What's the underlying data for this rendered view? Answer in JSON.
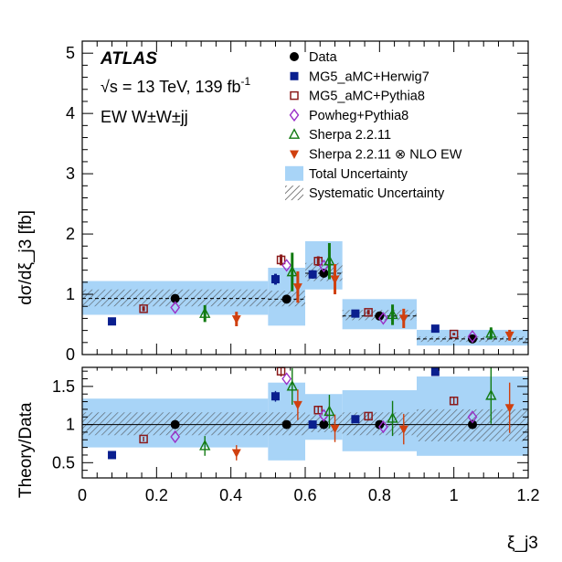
{
  "chart_data": {
    "type": "scatter",
    "experiment_label": "ATLAS",
    "energy_label": "√s = 13 TeV, 139 fb",
    "energy_label_sup": "-1",
    "process_label": "EW W±W±jj",
    "xlabel": "ξ_j3",
    "ylabel_top": "dσ/dξ_j3 [fb]",
    "ylabel_bottom": "Theory/Data",
    "xlim": [
      0,
      1.2
    ],
    "ylim_top": [
      0,
      5.2
    ],
    "ylim_bottom": [
      0.3,
      1.75
    ],
    "x_ticks": [
      "0",
      "0.2",
      "0.4",
      "0.6",
      "0.8",
      "1",
      "1.2"
    ],
    "y_ticks_top": [
      "0",
      "1",
      "2",
      "3",
      "4",
      "5"
    ],
    "y_ticks_bottom": [
      "0.5",
      "1",
      "1.5"
    ],
    "bins": [
      [
        0,
        0.5
      ],
      [
        0.5,
        0.6
      ],
      [
        0.6,
        0.7
      ],
      [
        0.7,
        0.9
      ],
      [
        0.9,
        1.2
      ]
    ],
    "data_x": [
      0.25,
      0.55,
      0.65,
      0.8,
      1.05
    ],
    "series": [
      {
        "name": "Data",
        "marker": "circle",
        "color": "#000000",
        "offset": 0,
        "values": [
          0.93,
          0.92,
          1.35,
          0.64,
          0.26
        ],
        "errors": [
          0,
          0,
          0,
          0,
          0
        ],
        "ratio": [
          1.0,
          1.0,
          1.0,
          1.0,
          1.0
        ],
        "ratio_errors": [
          0,
          0,
          0,
          0,
          0
        ]
      },
      {
        "name": "MG5_aMC+Herwig7",
        "marker": "square-filled",
        "color": "#0a1f8f",
        "x": [
          0.08,
          0.52,
          0.62,
          0.735,
          0.95
        ],
        "values": [
          0.55,
          1.25,
          1.33,
          0.68,
          0.43
        ],
        "errors": [
          0.03,
          0.09,
          0.07,
          0.04,
          0.02
        ],
        "ratio": [
          0.6,
          1.37,
          1.0,
          1.07,
          1.69
        ],
        "ratio_errors": [
          0.02,
          0.07,
          0.05,
          0.04,
          0.04
        ]
      },
      {
        "name": "MG5_aMC+Pythia8",
        "marker": "square-open",
        "color": "#8b1a1a",
        "x": [
          0.165,
          0.535,
          0.635,
          0.77,
          1.0
        ],
        "values": [
          0.76,
          1.57,
          1.55,
          0.7,
          0.34
        ],
        "errors": [
          0.04,
          0.09,
          0.08,
          0.04,
          0.02
        ],
        "ratio": [
          0.81,
          1.7,
          1.19,
          1.11,
          1.31
        ],
        "ratio_errors": [
          0.03,
          0.07,
          0.05,
          0.04,
          0.04
        ]
      },
      {
        "name": "Powheg+Pythia8",
        "marker": "diamond-open",
        "color": "#9b30c8",
        "x": [
          0.25,
          0.55,
          0.65,
          0.81,
          1.05
        ],
        "values": [
          0.78,
          1.48,
          1.47,
          0.6,
          0.3
        ],
        "errors": [
          0,
          0,
          0,
          0,
          0
        ],
        "ratio": [
          0.84,
          1.6,
          1.12,
          0.97,
          1.1
        ],
        "ratio_errors": [
          0,
          0,
          0,
          0,
          0
        ]
      },
      {
        "name": "Sherpa 2.2.11",
        "marker": "triangle-up-open",
        "color": "#117a11",
        "x": [
          0.33,
          0.565,
          0.665,
          0.835,
          1.1
        ],
        "values": [
          0.68,
          1.37,
          1.55,
          0.66,
          0.35
        ],
        "errors": [
          0.14,
          0.32,
          0.3,
          0.17,
          0.1
        ],
        "ratio": [
          0.72,
          1.5,
          1.17,
          1.08,
          1.38
        ],
        "ratio_errors": [
          0.13,
          0.24,
          0.22,
          0.23,
          0.37
        ]
      },
      {
        "name": "Sherpa 2.2.11 ⊗ NLO EW",
        "marker": "triangle-down-filled",
        "color": "#d0400f",
        "x": [
          0.415,
          0.58,
          0.68,
          0.865,
          1.15
        ],
        "values": [
          0.59,
          1.12,
          1.25,
          0.6,
          0.32
        ],
        "errors": [
          0.12,
          0.26,
          0.25,
          0.16,
          0.09
        ],
        "ratio": [
          0.63,
          1.26,
          0.95,
          0.94,
          1.22
        ],
        "ratio_errors": [
          0.1,
          0.2,
          0.18,
          0.2,
          0.33
        ]
      }
    ],
    "total_uncertainty": {
      "name": "Total Uncertainty",
      "color": "#a8d4f7",
      "low": [
        0.66,
        0.48,
        1.08,
        0.42,
        0.15
      ],
      "high": [
        1.22,
        1.44,
        1.88,
        0.92,
        0.41
      ],
      "ratio_low": [
        0.7,
        0.53,
        0.8,
        0.65,
        0.59
      ],
      "ratio_high": [
        1.34,
        1.55,
        1.4,
        1.45,
        1.63
      ]
    },
    "systematic_uncertainty": {
      "name": "Systematic Uncertainty",
      "color": "#555555",
      "low": [
        0.8,
        0.8,
        1.22,
        0.57,
        0.21
      ],
      "high": [
        1.08,
        1.06,
        1.52,
        0.74,
        0.3
      ],
      "ratio_low": [
        0.86,
        0.86,
        0.9,
        0.86,
        0.78
      ],
      "ratio_high": [
        1.16,
        1.16,
        1.13,
        1.16,
        1.2
      ]
    },
    "legend": [
      {
        "label": "Data"
      },
      {
        "label": "MG5_aMC+Herwig7"
      },
      {
        "label": "MG5_aMC+Pythia8"
      },
      {
        "label": "Powheg+Pythia8"
      },
      {
        "label": "Sherpa 2.2.11"
      },
      {
        "label": "Sherpa 2.2.11 ⊗ NLO EW"
      },
      {
        "label": "Total Uncertainty"
      },
      {
        "label": "Systematic Uncertainty"
      }
    ]
  }
}
